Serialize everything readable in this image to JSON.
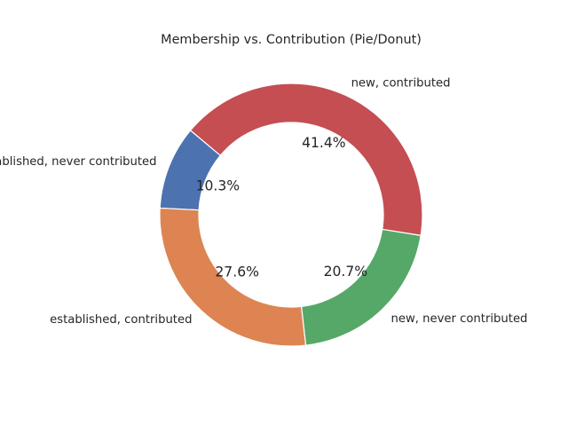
{
  "chart_data": {
    "type": "pie",
    "variant": "donut",
    "title": "Membership vs. Contribution (Pie/Donut)",
    "categories": [
      "established, never contributed",
      "established, contributed",
      "new, never contributed",
      "new, contributed"
    ],
    "values": [
      10.3,
      27.6,
      20.7,
      41.4
    ],
    "value_labels": [
      "10.3%",
      "27.6%",
      "20.7%",
      "41.4%"
    ],
    "colors": [
      "#4c72b0",
      "#dd8452",
      "#55a868",
      "#c44e52"
    ],
    "start_angle_deg": 140,
    "direction": "counterclockwise",
    "legend": "none"
  }
}
